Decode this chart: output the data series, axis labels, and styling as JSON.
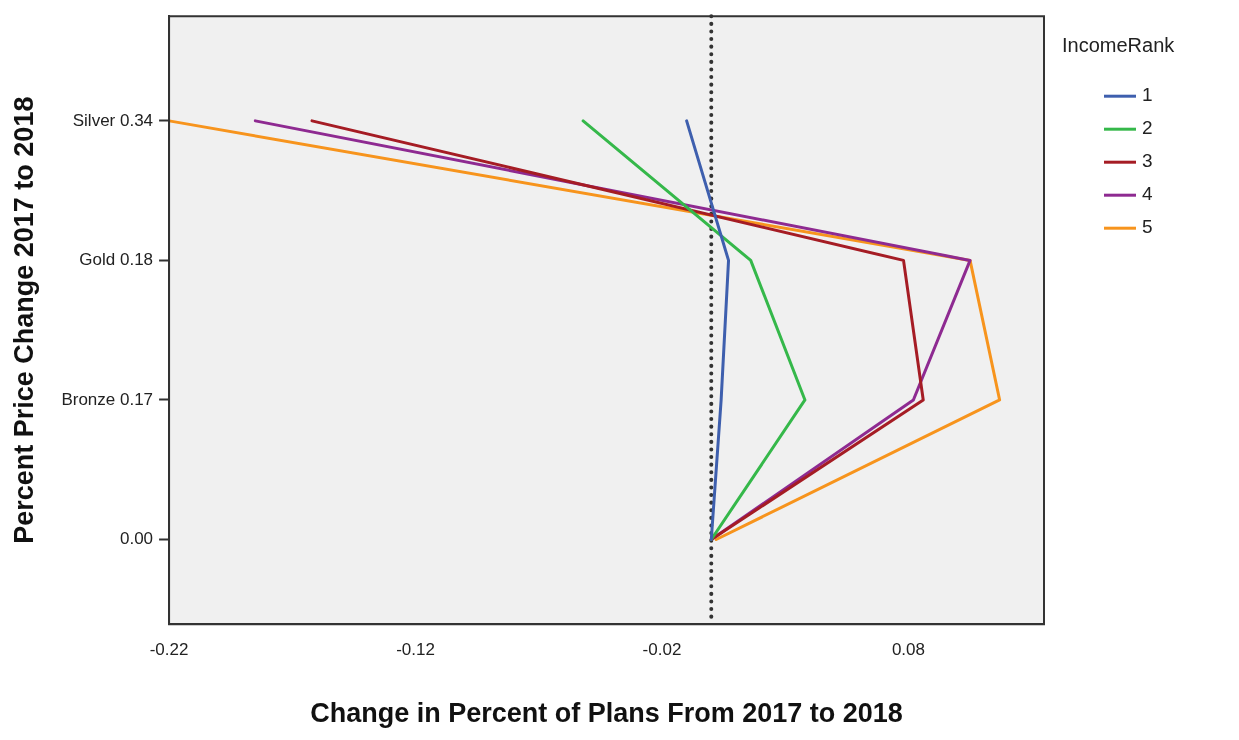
{
  "chart_data": {
    "type": "line",
    "orientation": "horizontal",
    "xlabel": "Change in Percent of Plans From 2017 to 2018",
    "ylabel": "Percent Price Change 2017 to 2018",
    "legend_title": "IncomeRank",
    "legend": "right",
    "grid": false,
    "marker": "none",
    "line_style": "solid",
    "categories": [
      "Silver 0.34",
      "Gold 0.18",
      "Bronze 0.17",
      "0.00"
    ],
    "xlim": [
      -0.22,
      0.135
    ],
    "xticks": [
      -0.22,
      -0.12,
      -0.02,
      0.08
    ],
    "ref_lines": [
      {
        "axis": "x",
        "value": 0,
        "color": "#333333",
        "line_style": "dotted"
      }
    ],
    "series": [
      {
        "name": "1",
        "color": "#3e5fae",
        "values": [
          -0.01,
          0.007,
          0.004,
          0
        ]
      },
      {
        "name": "2",
        "color": "#35b84a",
        "values": [
          -0.052,
          0.016,
          0.038,
          0
        ]
      },
      {
        "name": "3",
        "color": "#a51c24",
        "values": [
          -0.162,
          0.078,
          0.086,
          0
        ]
      },
      {
        "name": "4",
        "color": "#8e2a91",
        "values": [
          -0.185,
          0.105,
          0.082,
          0
        ]
      },
      {
        "name": "5",
        "color": "#f7941d",
        "values": [
          -0.22,
          0.105,
          0.117,
          0.002
        ]
      }
    ]
  }
}
